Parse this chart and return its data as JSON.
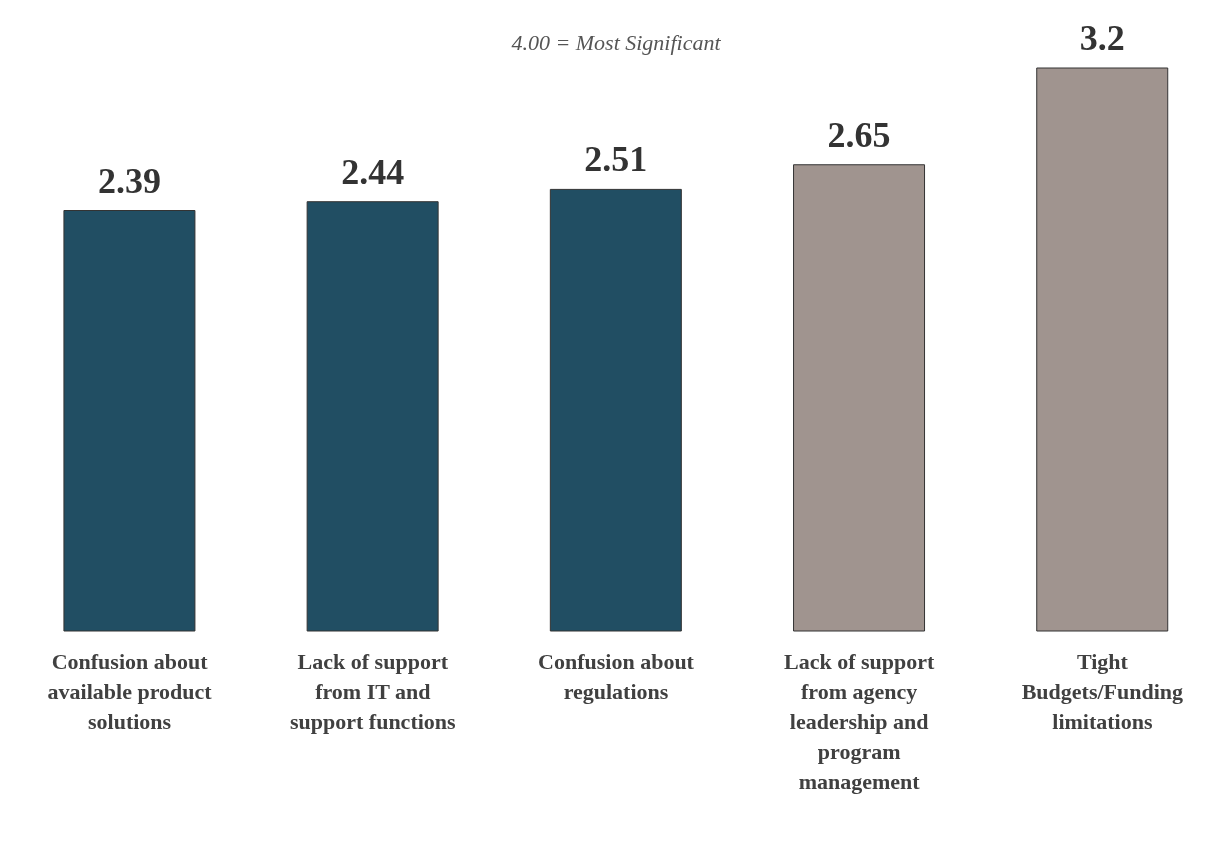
{
  "chart_data": {
    "type": "bar",
    "subtitle": "4.00 = Most Significant",
    "categories": [
      "Confusion about available product solutions",
      "Lack of support from IT and support functions",
      "Confusion about regulations",
      "Lack of support from agency leadership and program management",
      "Tight Budgets/Funding limitations"
    ],
    "values": [
      2.39,
      2.44,
      2.51,
      2.65,
      3.2
    ],
    "colors": [
      "#214e63",
      "#214e63",
      "#214e63",
      "#a0948f",
      "#a0948f"
    ],
    "data_labels": true,
    "grid": false,
    "legend": false
  }
}
